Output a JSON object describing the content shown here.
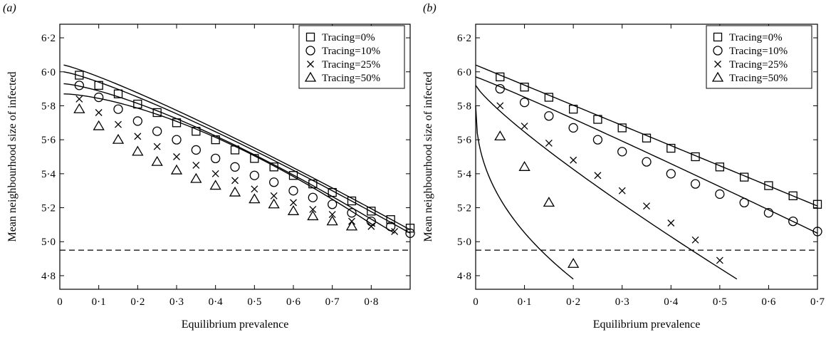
{
  "figure": {
    "panel_a_label": "(a)",
    "panel_b_label": "(b)"
  },
  "chart_data": [
    {
      "type": "line",
      "panel": "(a)",
      "xlabel": "Equilibrium prevalence",
      "ylabel": "Mean neighbourhood size of infected",
      "xlim": [
        0,
        0.9
      ],
      "ylim": [
        4.72,
        6.28
      ],
      "x_ticks": [
        0,
        0.1,
        0.2,
        0.3,
        0.4,
        0.5,
        0.6,
        0.7,
        0.8
      ],
      "x_tick_labels": [
        "0",
        "0·1",
        "0·2",
        "0·3",
        "0·4",
        "0·5",
        "0·6",
        "0·7",
        "0·8"
      ],
      "y_ticks": [
        4.8,
        5.0,
        5.2,
        5.4,
        5.6,
        5.8,
        6.0,
        6.2
      ],
      "y_tick_labels": [
        "4·8",
        "5·0",
        "5·2",
        "5·4",
        "5·6",
        "5·8",
        "6·0",
        "6·2"
      ],
      "reference_line": {
        "y": 4.95,
        "style": "dashed"
      },
      "legend_position": "top-right",
      "grid": false,
      "series": [
        {
          "name": "Tracing=0%",
          "marker": "square",
          "x": [
            0.05,
            0.1,
            0.15,
            0.2,
            0.25,
            0.3,
            0.35,
            0.4,
            0.45,
            0.5,
            0.55,
            0.6,
            0.65,
            0.7,
            0.75,
            0.8,
            0.85,
            0.9
          ],
          "y": [
            5.98,
            5.92,
            5.87,
            5.81,
            5.76,
            5.7,
            5.65,
            5.6,
            5.54,
            5.49,
            5.44,
            5.39,
            5.34,
            5.29,
            5.24,
            5.18,
            5.13,
            5.08
          ],
          "curve_x": [
            0.01,
            0.9
          ],
          "curve_y": [
            6.04,
            5.07
          ]
        },
        {
          "name": "Tracing=10%",
          "marker": "circle",
          "x": [
            0.05,
            0.1,
            0.15,
            0.2,
            0.25,
            0.3,
            0.35,
            0.4,
            0.45,
            0.5,
            0.55,
            0.6,
            0.65,
            0.7,
            0.75,
            0.8,
            0.85,
            0.9
          ],
          "y": [
            5.92,
            5.85,
            5.78,
            5.71,
            5.65,
            5.6,
            5.54,
            5.49,
            5.44,
            5.39,
            5.35,
            5.3,
            5.26,
            5.22,
            5.17,
            5.12,
            5.09,
            5.05
          ],
          "curve_x": [
            0.01,
            0.9
          ],
          "curve_y": [
            6.0,
            5.05
          ]
        },
        {
          "name": "Tracing=25%",
          "marker": "cross",
          "x": [
            0.05,
            0.1,
            0.15,
            0.2,
            0.25,
            0.3,
            0.35,
            0.4,
            0.45,
            0.5,
            0.55,
            0.6,
            0.65,
            0.7,
            0.75,
            0.8,
            0.86
          ],
          "y": [
            5.84,
            5.76,
            5.69,
            5.62,
            5.56,
            5.5,
            5.45,
            5.4,
            5.36,
            5.31,
            5.27,
            5.23,
            5.19,
            5.16,
            5.12,
            5.09,
            5.06
          ],
          "curve_x": [
            0.01,
            0.86
          ],
          "curve_y": [
            5.93,
            5.05
          ]
        },
        {
          "name": "Tracing=50%",
          "marker": "triangle",
          "x": [
            0.05,
            0.1,
            0.15,
            0.2,
            0.25,
            0.3,
            0.35,
            0.4,
            0.45,
            0.5,
            0.55,
            0.6,
            0.65,
            0.7,
            0.75
          ],
          "y": [
            5.78,
            5.68,
            5.6,
            5.53,
            5.47,
            5.42,
            5.37,
            5.33,
            5.29,
            5.25,
            5.22,
            5.18,
            5.15,
            5.12,
            5.09
          ],
          "curve_x": [
            0.01,
            0.81
          ],
          "curve_y": [
            5.87,
            5.09
          ]
        }
      ]
    },
    {
      "type": "line",
      "panel": "(b)",
      "xlabel": "Equilibrium prevalence",
      "ylabel": "Mean neighbourhood size of infected",
      "xlim": [
        0,
        0.7
      ],
      "ylim": [
        4.72,
        6.28
      ],
      "x_ticks": [
        0,
        0.1,
        0.2,
        0.3,
        0.4,
        0.5,
        0.6,
        0.7
      ],
      "x_tick_labels": [
        "0",
        "0·1",
        "0·2",
        "0·3",
        "0·4",
        "0·5",
        "0·6",
        "0·7"
      ],
      "y_ticks": [
        4.8,
        5.0,
        5.2,
        5.4,
        5.6,
        5.8,
        6.0,
        6.2
      ],
      "y_tick_labels": [
        "4·8",
        "5·0",
        "5·2",
        "5·4",
        "5·6",
        "5·8",
        "6·0",
        "6·2"
      ],
      "reference_line": {
        "y": 4.95,
        "style": "dashed"
      },
      "legend_position": "top-right",
      "grid": false,
      "series": [
        {
          "name": "Tracing=0%",
          "marker": "square",
          "x": [
            0.05,
            0.1,
            0.15,
            0.2,
            0.25,
            0.3,
            0.35,
            0.4,
            0.45,
            0.5,
            0.55,
            0.6,
            0.65,
            0.7
          ],
          "y": [
            5.97,
            5.91,
            5.85,
            5.78,
            5.72,
            5.67,
            5.61,
            5.55,
            5.5,
            5.44,
            5.38,
            5.33,
            5.27,
            5.22
          ],
          "curve_x": [
            0.0,
            0.7
          ],
          "curve_y": [
            6.04,
            5.21
          ]
        },
        {
          "name": "Tracing=10%",
          "marker": "circle",
          "x": [
            0.05,
            0.1,
            0.15,
            0.2,
            0.25,
            0.3,
            0.35,
            0.4,
            0.45,
            0.5,
            0.55,
            0.6,
            0.65,
            0.7
          ],
          "y": [
            5.9,
            5.82,
            5.74,
            5.67,
            5.6,
            5.53,
            5.47,
            5.4,
            5.34,
            5.28,
            5.23,
            5.17,
            5.12,
            5.06
          ],
          "curve_x": [
            0.0,
            0.7
          ],
          "curve_y": [
            5.97,
            5.05
          ]
        },
        {
          "name": "Tracing=25%",
          "marker": "cross",
          "x": [
            0.05,
            0.1,
            0.15,
            0.2,
            0.25,
            0.3,
            0.35,
            0.4,
            0.45,
            0.5
          ],
          "y": [
            5.8,
            5.68,
            5.58,
            5.48,
            5.39,
            5.3,
            5.21,
            5.11,
            5.01,
            4.89
          ],
          "curve_x": [
            0.0,
            0.535
          ],
          "curve_y": [
            5.92,
            4.78
          ]
        },
        {
          "name": "Tracing=50%",
          "marker": "triangle",
          "x": [
            0.05,
            0.1,
            0.15,
            0.2
          ],
          "y": [
            5.62,
            5.44,
            5.23,
            4.87
          ],
          "curve_x": [
            0.0,
            0.2
          ],
          "curve_y": [
            5.8,
            4.78
          ]
        }
      ]
    }
  ]
}
